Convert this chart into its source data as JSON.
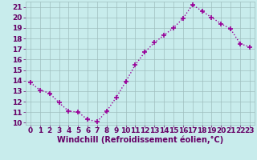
{
  "x": [
    0,
    1,
    2,
    3,
    4,
    5,
    6,
    7,
    8,
    9,
    10,
    11,
    12,
    13,
    14,
    15,
    16,
    17,
    18,
    19,
    20,
    21,
    22,
    23
  ],
  "y": [
    13.8,
    13.1,
    12.8,
    11.9,
    11.1,
    11.0,
    10.3,
    10.1,
    11.1,
    12.4,
    13.9,
    15.5,
    16.7,
    17.6,
    18.3,
    19.0,
    19.9,
    21.2,
    20.6,
    20.0,
    19.4,
    18.9,
    17.5,
    17.2
  ],
  "line_color": "#990099",
  "marker": "+",
  "markersize": 4,
  "markeredgewidth": 1.2,
  "linewidth": 1.0,
  "bg_color": "#c8ecec",
  "grid_color": "#9fbfbf",
  "xlabel": "Windchill (Refroidissement éolien,°C)",
  "xlabel_color": "#660066",
  "xlabel_fontsize": 7,
  "tick_color": "#660066",
  "tick_fontsize": 6.5,
  "ylim": [
    9.8,
    21.5
  ],
  "xlim": [
    -0.5,
    23.5
  ],
  "yticks": [
    10,
    11,
    12,
    13,
    14,
    15,
    16,
    17,
    18,
    19,
    20,
    21
  ],
  "xticks": [
    0,
    1,
    2,
    3,
    4,
    5,
    6,
    7,
    8,
    9,
    10,
    11,
    12,
    13,
    14,
    15,
    16,
    17,
    18,
    19,
    20,
    21,
    22,
    23
  ]
}
